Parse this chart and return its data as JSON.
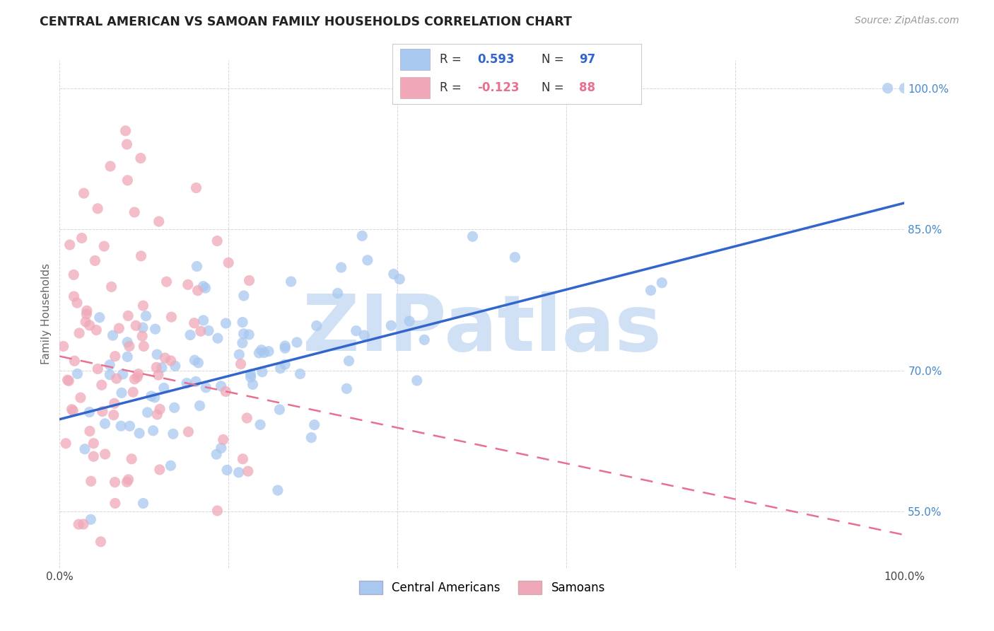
{
  "title": "CENTRAL AMERICAN VS SAMOAN FAMILY HOUSEHOLDS CORRELATION CHART",
  "source": "Source: ZipAtlas.com",
  "ylabel": "Family Households",
  "xlim": [
    0,
    1
  ],
  "ylim": [
    0.49,
    1.03
  ],
  "y_ticks": [
    0.55,
    0.7,
    0.85,
    1.0
  ],
  "y_tick_labels": [
    "55.0%",
    "70.0%",
    "85.0%",
    "100.0%"
  ],
  "x_ticks": [
    0.0,
    0.2,
    0.4,
    0.6,
    0.8,
    1.0
  ],
  "x_tick_labels": [
    "0.0%",
    "",
    "",
    "",
    "",
    "100.0%"
  ],
  "blue_R": 0.593,
  "blue_N": 97,
  "pink_R": -0.123,
  "pink_N": 88,
  "blue_dot_color": "#A8C8F0",
  "pink_dot_color": "#F0A8B8",
  "blue_line_color": "#3366CC",
  "pink_line_color": "#E87090",
  "tick_color": "#4488CC",
  "watermark": "ZIPatlas",
  "watermark_color": "#D0E0F5",
  "legend_label_blue": "Central Americans",
  "legend_label_pink": "Samoans",
  "blue_line_x0": 0.0,
  "blue_line_y0": 0.648,
  "blue_line_x1": 1.0,
  "blue_line_y1": 0.878,
  "pink_line_x0": 0.0,
  "pink_line_y0": 0.715,
  "pink_line_x1": 1.0,
  "pink_line_y1": 0.525
}
